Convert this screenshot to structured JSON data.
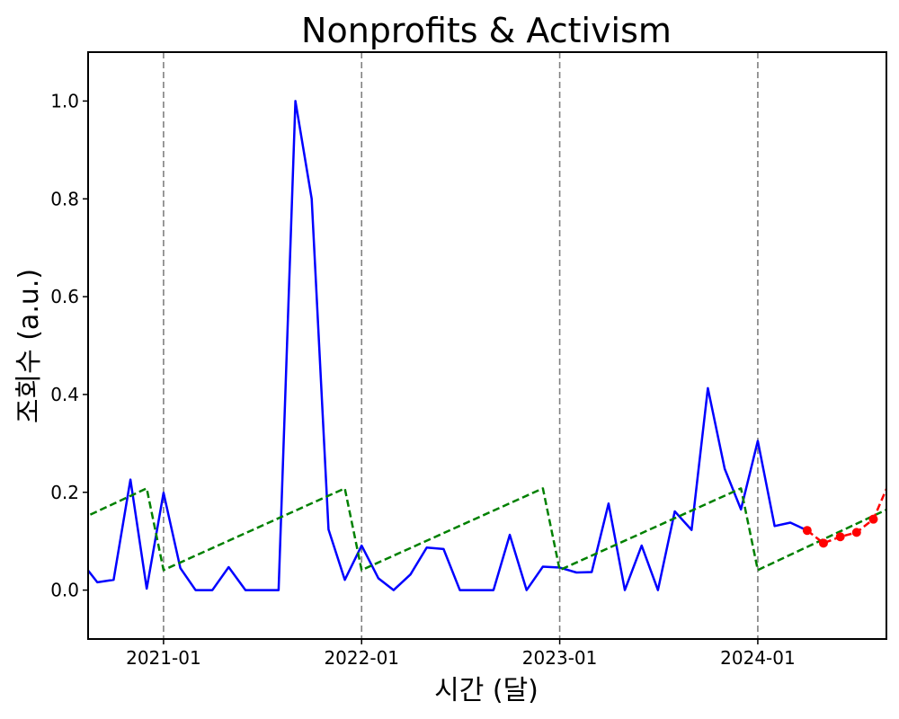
{
  "chart_data": {
    "type": "line",
    "title": "Nonprofits & Activism",
    "xlabel": "시간 (달)",
    "ylabel": "조회수 (a.u.)",
    "ylim": [
      -0.1,
      1.1
    ],
    "yticks": [
      "0.0",
      "0.2",
      "0.4",
      "0.6",
      "0.8",
      "1.0"
    ],
    "yticks_values": [
      0,
      0.2,
      0.4,
      0.6,
      0.8,
      1.0
    ],
    "xlim": [
      "2020-08-15",
      "2024-08-25"
    ],
    "xticks": [
      "2021-01",
      "2022-01",
      "2023-01",
      "2024-01"
    ],
    "xticks_dates": [
      "2021-01-01",
      "2022-01-01",
      "2023-01-01",
      "2024-01-01"
    ],
    "vlines_dates": [
      "2021-01-01",
      "2022-01-01",
      "2023-01-01",
      "2024-01-01"
    ],
    "grid": false,
    "colors": {
      "observed": "#0000ff",
      "trend": "#008000",
      "forecast": "#ff0000",
      "vline": "#808080"
    },
    "series": [
      {
        "style": "solid",
        "x": [
          "2020-08-01",
          "2020-09-01",
          "2020-10-01",
          "2020-11-01",
          "2020-12-01",
          "2021-01-01",
          "2021-02-01",
          "2021-03-01",
          "2021-04-01",
          "2021-05-01",
          "2021-06-01",
          "2021-07-01",
          "2021-08-01",
          "2021-09-01",
          "2021-10-01",
          "2021-11-01",
          "2021-12-01",
          "2022-01-01",
          "2022-02-01",
          "2022-03-01",
          "2022-04-01",
          "2022-05-01",
          "2022-06-01",
          "2022-07-01",
          "2022-08-01",
          "2022-09-01",
          "2022-10-01",
          "2022-11-01",
          "2022-12-01",
          "2023-01-01",
          "2023-02-01",
          "2023-03-01",
          "2023-04-01",
          "2023-05-01",
          "2023-06-01",
          "2023-07-01",
          "2023-08-01",
          "2023-09-01",
          "2023-10-01",
          "2023-11-01",
          "2023-12-01",
          "2024-01-01",
          "2024-02-01",
          "2024-03-01",
          "2024-04-01"
        ],
        "values": [
          0.06,
          0.016,
          0.021,
          0.226,
          0.003,
          0.199,
          0.045,
          0.0,
          0.0,
          0.047,
          0.0,
          0.0,
          0.0,
          1.0,
          0.8,
          0.124,
          0.021,
          0.091,
          0.024,
          0.0,
          0.032,
          0.087,
          0.084,
          0.0,
          0.0,
          0.0,
          0.113,
          0.0,
          0.048,
          0.046,
          0.036,
          0.037,
          0.177,
          0.0,
          0.091,
          0.0,
          0.161,
          0.123,
          0.413,
          0.248,
          0.165,
          0.305,
          0.131,
          0.138,
          0.122
        ]
      },
      {
        "style": "dashed",
        "x": [
          "2020-08-01",
          "2020-12-01",
          "2021-01-01",
          "2021-12-01",
          "2022-01-01",
          "2022-12-01",
          "2023-01-01",
          "2023-12-01",
          "2024-01-01",
          "2024-09-01"
        ],
        "values": [
          0.145,
          0.208,
          0.041,
          0.208,
          0.041,
          0.208,
          0.041,
          0.208,
          0.041,
          0.168
        ]
      },
      {
        "style": "dashed-markers",
        "x": [
          "2024-04-01",
          "2024-05-01",
          "2024-06-01",
          "2024-07-01",
          "2024-08-01",
          "2024-09-01"
        ],
        "values": [
          0.122,
          0.096,
          0.109,
          0.118,
          0.145,
          0.225
        ]
      }
    ]
  }
}
